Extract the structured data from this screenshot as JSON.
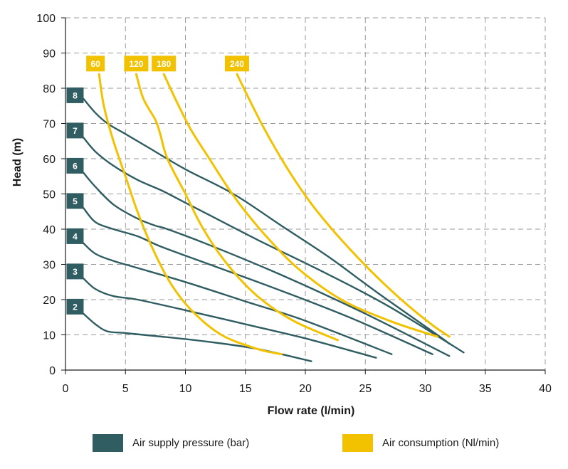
{
  "chart_data": {
    "type": "line",
    "xlabel": "Flow rate (l/min)",
    "ylabel": "Head (m)",
    "xlim": [
      0,
      40
    ],
    "ylim": [
      0,
      100
    ],
    "x_ticks": [
      0,
      5,
      10,
      15,
      20,
      25,
      30,
      35,
      40
    ],
    "y_ticks": [
      0,
      10,
      20,
      30,
      40,
      50,
      60,
      70,
      80,
      90,
      100
    ],
    "grid": true,
    "colors": {
      "pressure": "#2f5d62",
      "consumption": "#f2c200",
      "grid": "#9a9a9a",
      "axis": "#1a1a1a"
    },
    "legend": [
      {
        "label": "Air supply pressure (bar)",
        "color": "#2f5d62"
      },
      {
        "label": "Air consumption (Nl/min)",
        "color": "#f2c200"
      }
    ],
    "pressure_series": [
      {
        "name": "2",
        "label_at": [
          0.8,
          18
        ],
        "points": [
          [
            1.5,
            16
          ],
          [
            2.5,
            13
          ],
          [
            3.5,
            11
          ],
          [
            5,
            10.5
          ],
          [
            8,
            9.5
          ],
          [
            12,
            8
          ],
          [
            16,
            6
          ],
          [
            20.5,
            2.5
          ]
        ]
      },
      {
        "name": "3",
        "label_at": [
          0.8,
          28
        ],
        "points": [
          [
            1.5,
            26
          ],
          [
            2.5,
            23
          ],
          [
            4,
            21
          ],
          [
            6,
            20
          ],
          [
            10,
            17
          ],
          [
            15,
            13
          ],
          [
            20,
            9
          ],
          [
            25.9,
            3.5
          ]
        ]
      },
      {
        "name": "4",
        "label_at": [
          0.8,
          38
        ],
        "points": [
          [
            1.5,
            36
          ],
          [
            2.5,
            33
          ],
          [
            4,
            31
          ],
          [
            6,
            29
          ],
          [
            10,
            25
          ],
          [
            15,
            19.5
          ],
          [
            20,
            14
          ],
          [
            27.2,
            4.5
          ]
        ]
      },
      {
        "name": "5",
        "label_at": [
          0.8,
          48
        ],
        "points": [
          [
            1.5,
            46
          ],
          [
            2.5,
            42
          ],
          [
            4,
            40
          ],
          [
            6,
            38
          ],
          [
            8,
            35
          ],
          [
            12,
            30
          ],
          [
            18,
            22.5
          ],
          [
            24,
            14.5
          ],
          [
            30.6,
            4.5
          ]
        ]
      },
      {
        "name": "6",
        "label_at": [
          0.8,
          58
        ],
        "points": [
          [
            1.5,
            56
          ],
          [
            2.5,
            52
          ],
          [
            4,
            47
          ],
          [
            6,
            43
          ],
          [
            7.5,
            41
          ],
          [
            8.5,
            40
          ],
          [
            12,
            35.5
          ],
          [
            18,
            27
          ],
          [
            25,
            16
          ],
          [
            32,
            4
          ]
        ]
      },
      {
        "name": "7",
        "label_at": [
          0.8,
          68
        ],
        "points": [
          [
            1.5,
            66
          ],
          [
            2.5,
            62
          ],
          [
            4,
            58
          ],
          [
            6,
            54
          ],
          [
            8,
            51
          ],
          [
            10,
            47.5
          ],
          [
            12,
            44
          ],
          [
            16,
            37
          ],
          [
            22,
            27
          ],
          [
            27,
            18
          ],
          [
            33.2,
            5
          ]
        ]
      },
      {
        "name": "8",
        "label_at": [
          0.8,
          78
        ],
        "points": [
          [
            1.5,
            77
          ],
          [
            2.5,
            73
          ],
          [
            3.5,
            70
          ],
          [
            5,
            67
          ],
          [
            7,
            63
          ],
          [
            10,
            57
          ],
          [
            14,
            50
          ],
          [
            18,
            41
          ],
          [
            22,
            32
          ],
          [
            26,
            22
          ],
          [
            31,
            10
          ],
          [
            32,
            7.5
          ]
        ]
      }
    ],
    "consumption_series": [
      {
        "name": "60",
        "label_at": [
          2.5,
          87
        ],
        "points": [
          [
            2.8,
            84
          ],
          [
            3.2,
            75
          ],
          [
            4,
            65
          ],
          [
            5,
            55
          ],
          [
            6,
            45
          ],
          [
            7.2,
            35
          ],
          [
            8.7,
            25
          ],
          [
            10.5,
            17
          ],
          [
            13,
            10
          ],
          [
            16,
            6
          ],
          [
            18,
            4.5
          ]
        ]
      },
      {
        "name": "120",
        "label_at": [
          5.9,
          87
        ],
        "points": [
          [
            5.9,
            84
          ],
          [
            6.5,
            77
          ],
          [
            7.5,
            71
          ],
          [
            7.9,
            67
          ],
          [
            8.5,
            60
          ],
          [
            10,
            50
          ],
          [
            11.5,
            40
          ],
          [
            13.5,
            30
          ],
          [
            16,
            21
          ],
          [
            19,
            14
          ],
          [
            22.7,
            8.5
          ]
        ]
      },
      {
        "name": "180",
        "label_at": [
          8.2,
          87
        ],
        "points": [
          [
            8.2,
            84
          ],
          [
            9.3,
            76
          ],
          [
            10.5,
            68
          ],
          [
            12,
            60
          ],
          [
            13.5,
            52
          ],
          [
            15,
            45
          ],
          [
            17,
            37
          ],
          [
            19.5,
            28.5
          ],
          [
            23,
            20
          ],
          [
            27,
            14
          ],
          [
            31,
            9.5
          ]
        ]
      },
      {
        "name": "240",
        "label_at": [
          14.3,
          87
        ],
        "points": [
          [
            14.3,
            84
          ],
          [
            15.3,
            77
          ],
          [
            16.5,
            69
          ],
          [
            18,
            60
          ],
          [
            19.5,
            52
          ],
          [
            21,
            45
          ],
          [
            23,
            37
          ],
          [
            25.5,
            28
          ],
          [
            28,
            20
          ],
          [
            30.5,
            13
          ],
          [
            32,
            9.5
          ]
        ]
      }
    ]
  }
}
